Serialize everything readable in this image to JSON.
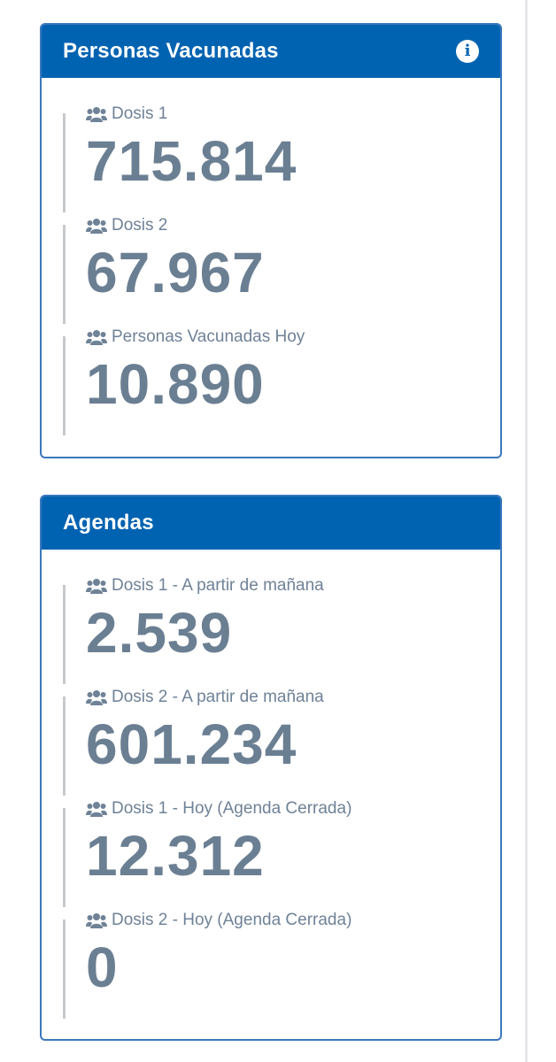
{
  "cards": [
    {
      "title": "Personas Vacunadas",
      "info_icon": "info-icon",
      "stats": [
        {
          "label": "Dosis 1",
          "value": "715.814",
          "icon": "users-icon"
        },
        {
          "label": "Dosis 2",
          "value": "67.967",
          "icon": "users-icon"
        },
        {
          "label": "Personas Vacunadas Hoy",
          "value": "10.890",
          "icon": "users-icon"
        }
      ]
    },
    {
      "title": "Agendas",
      "stats": [
        {
          "label": "Dosis 1 - A partir de mañana",
          "value": "2.539",
          "icon": "users-icon"
        },
        {
          "label": "Dosis 2 - A partir de mañana",
          "value": "601.234",
          "icon": "users-icon"
        },
        {
          "label": "Dosis 1 - Hoy (Agenda Cerrada)",
          "value": "12.312",
          "icon": "users-icon"
        },
        {
          "label": "Dosis 2 - Hoy (Agenda Cerrada)",
          "value": "0",
          "icon": "users-icon"
        }
      ]
    }
  ],
  "colors": {
    "header_bg": "#0063b1",
    "card_border": "#3a78bd",
    "stat_text": "#6b7f93",
    "label_text": "#6f8297",
    "stat_rule": "#c5c9cd"
  }
}
